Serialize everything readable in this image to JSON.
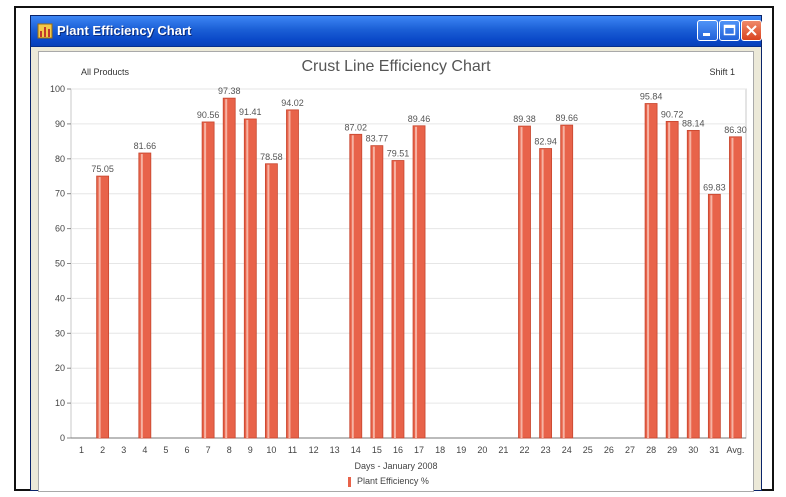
{
  "window": {
    "title": "Plant Efficiency Chart"
  },
  "header": {
    "left": "All Products",
    "center": "Crust Line Efficiency Chart",
    "right": "Shift 1"
  },
  "chart_data": {
    "type": "bar",
    "title": "Crust Line Efficiency Chart",
    "xlabel": "Days - January 2008",
    "ylabel": "",
    "ylim": [
      0,
      100
    ],
    "yticks": [
      0,
      10,
      20,
      30,
      40,
      50,
      60,
      70,
      80,
      90,
      100
    ],
    "grid": true,
    "categories": [
      "1",
      "2",
      "3",
      "4",
      "5",
      "6",
      "7",
      "8",
      "9",
      "10",
      "11",
      "12",
      "13",
      "14",
      "15",
      "16",
      "17",
      "18",
      "19",
      "20",
      "21",
      "22",
      "23",
      "24",
      "25",
      "26",
      "27",
      "28",
      "29",
      "30",
      "31",
      "Avg."
    ],
    "series": [
      {
        "name": "Plant Efficiency %",
        "color": "#e8634a",
        "values": [
          null,
          75.05,
          null,
          81.66,
          null,
          null,
          90.56,
          97.38,
          91.41,
          78.58,
          94.02,
          null,
          null,
          87.02,
          83.77,
          79.51,
          89.46,
          null,
          null,
          null,
          null,
          89.38,
          82.94,
          89.66,
          null,
          null,
          null,
          95.84,
          90.72,
          88.14,
          69.83,
          86.3
        ],
        "labels": [
          "",
          "75.05",
          "",
          "81.66",
          "",
          "",
          "90.56",
          "97.38",
          "91.41",
          "78.58",
          "94.02",
          "",
          "",
          "87.02",
          "83.77",
          "79.51",
          "89.46",
          "",
          "",
          "",
          "",
          "89.38",
          "82.94",
          "89.66",
          "",
          "",
          "",
          "95.84",
          "90.72",
          "88.14",
          "69.83",
          "86.30"
        ]
      }
    ],
    "legend": "bottom"
  }
}
